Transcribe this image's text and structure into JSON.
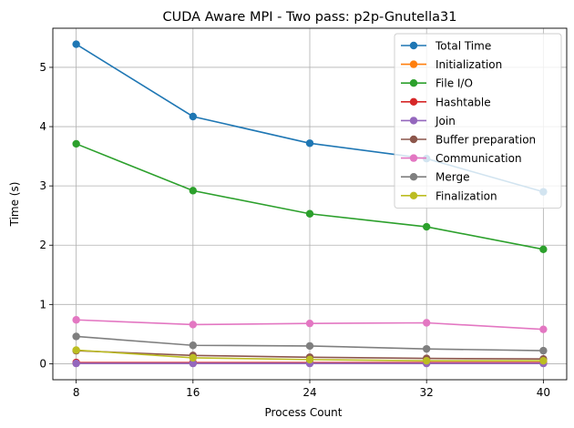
{
  "chart_data": {
    "type": "line",
    "title": "CUDA Aware MPI - Two pass: p2p-Gnutella31",
    "xlabel": "Process Count",
    "ylabel": "Time (s)",
    "x": [
      8,
      16,
      24,
      32,
      40
    ],
    "x_ticks": [
      "8",
      "16",
      "24",
      "32",
      "40"
    ],
    "y_ticks": [
      "0",
      "1",
      "2",
      "3",
      "4",
      "5"
    ],
    "xlim": [
      6.4,
      41.6
    ],
    "ylim": [
      -0.27,
      5.66
    ],
    "grid": true,
    "legend_position": "top-right",
    "series": [
      {
        "name": "Total Time",
        "color": "#1f77b4",
        "values": [
          5.39,
          4.17,
          3.72,
          3.46,
          2.9
        ]
      },
      {
        "name": "Initialization",
        "color": "#ff7f0e",
        "values": [
          0.01,
          0.01,
          0.01,
          0.01,
          0.01
        ]
      },
      {
        "name": "File I/O",
        "color": "#2ca02c",
        "values": [
          3.71,
          2.92,
          2.53,
          2.31,
          1.93
        ]
      },
      {
        "name": "Hashtable",
        "color": "#d62728",
        "values": [
          0.02,
          0.02,
          0.02,
          0.02,
          0.02
        ]
      },
      {
        "name": "Join",
        "color": "#9467bd",
        "values": [
          0.005,
          0.005,
          0.005,
          0.005,
          0.005
        ]
      },
      {
        "name": "Buffer preparation",
        "color": "#8c564b",
        "values": [
          0.22,
          0.14,
          0.11,
          0.09,
          0.08
        ]
      },
      {
        "name": "Communication",
        "color": "#e377c2",
        "values": [
          0.74,
          0.66,
          0.68,
          0.69,
          0.58
        ]
      },
      {
        "name": "Merge",
        "color": "#7f7f7f",
        "values": [
          0.46,
          0.31,
          0.3,
          0.25,
          0.22
        ]
      },
      {
        "name": "Finalization",
        "color": "#bcbd22",
        "values": [
          0.23,
          0.1,
          0.07,
          0.05,
          0.05
        ]
      }
    ]
  }
}
